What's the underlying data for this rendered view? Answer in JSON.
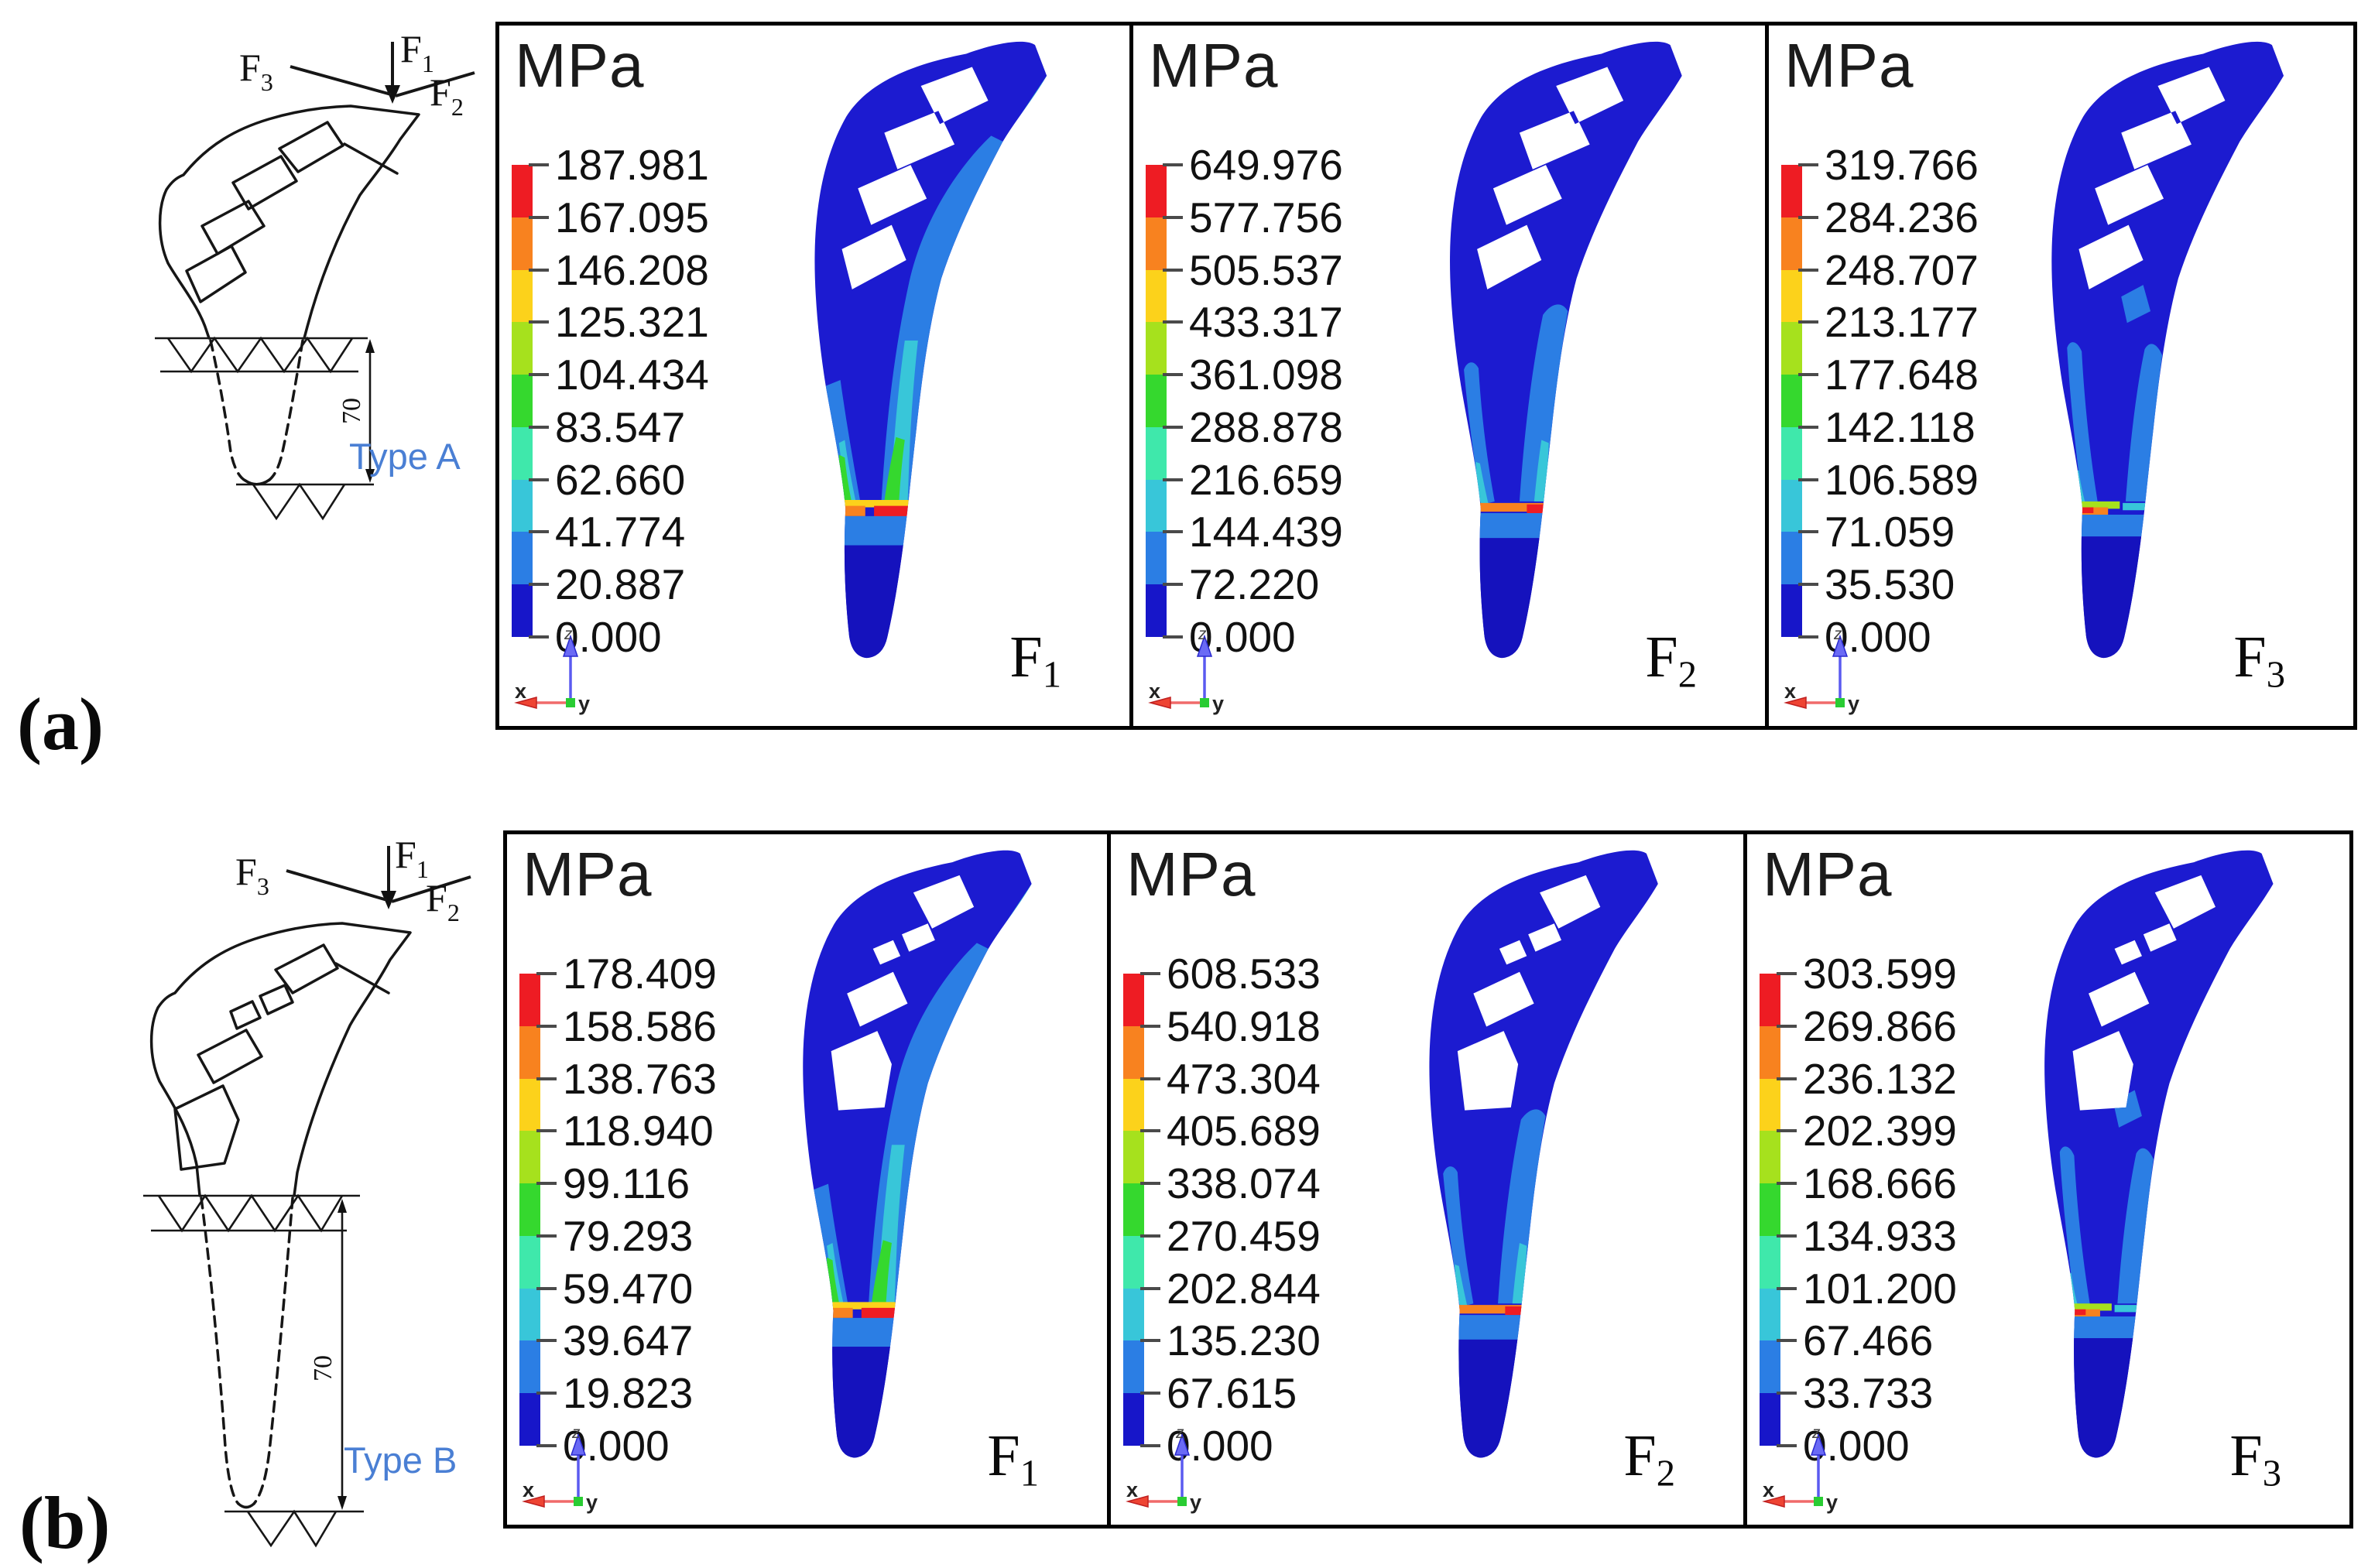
{
  "axis": {
    "x": "x",
    "y": "y",
    "z": "z"
  },
  "legend_colors": [
    "#ee1c23",
    "#f8821f",
    "#fcd21b",
    "#a6e11d",
    "#35d82e",
    "#3fe8ab",
    "#38c6d9",
    "#2b7ee4",
    "#1716c9"
  ],
  "stem_base_color": "#1c1bd0",
  "type_label_color": "#4a7fd4",
  "rows": [
    {
      "panel_label": "(a)",
      "type_label": "Type A",
      "dim_label": "70",
      "forces": [
        {
          "label": "F",
          "sub": "1"
        },
        {
          "label": "F",
          "sub": "2"
        },
        {
          "label": "F",
          "sub": "3"
        }
      ]
    },
    {
      "panel_label": "(b)",
      "type_label": "Type B",
      "dim_label": "70",
      "forces": [
        {
          "label": "F",
          "sub": "1"
        },
        {
          "label": "F",
          "sub": "2"
        },
        {
          "label": "F",
          "sub": "3"
        }
      ]
    }
  ],
  "panels": [
    {
      "row": "a",
      "unit": "MPa",
      "force_label": "F",
      "force_sub": "1",
      "values": [
        "187.981",
        "167.095",
        "146.208",
        "125.321",
        "104.434",
        "83.547",
        "62.660",
        "41.774",
        "20.887",
        "0.000"
      ]
    },
    {
      "row": "a",
      "unit": "MPa",
      "force_label": "F",
      "force_sub": "2",
      "values": [
        "649.976",
        "577.756",
        "505.537",
        "433.317",
        "361.098",
        "288.878",
        "216.659",
        "144.439",
        "72.220",
        "0.000"
      ]
    },
    {
      "row": "a",
      "unit": "MPa",
      "force_label": "F",
      "force_sub": "3",
      "values": [
        "319.766",
        "284.236",
        "248.707",
        "213.177",
        "177.648",
        "142.118",
        "106.589",
        "71.059",
        "35.530",
        "0.000"
      ]
    },
    {
      "row": "b",
      "unit": "MPa",
      "force_label": "F",
      "force_sub": "1",
      "values": [
        "178.409",
        "158.586",
        "138.763",
        "118.940",
        "99.116",
        "79.293",
        "59.470",
        "39.647",
        "19.823",
        "0.000"
      ]
    },
    {
      "row": "b",
      "unit": "MPa",
      "force_label": "F",
      "force_sub": "2",
      "values": [
        "608.533",
        "540.918",
        "473.304",
        "405.689",
        "338.074",
        "270.459",
        "202.844",
        "135.230",
        "67.615",
        "0.000"
      ]
    },
    {
      "row": "b",
      "unit": "MPa",
      "force_label": "F",
      "force_sub": "3",
      "values": [
        "303.599",
        "269.866",
        "236.132",
        "202.399",
        "168.666",
        "134.933",
        "101.200",
        "67.466",
        "33.733",
        "0.000"
      ]
    }
  ]
}
